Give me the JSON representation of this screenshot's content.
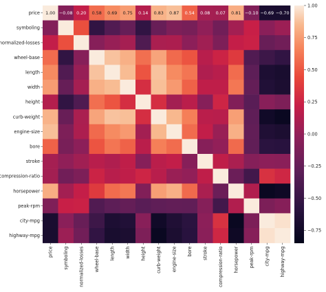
{
  "chart_data": {
    "type": "heatmap",
    "title": "",
    "xlabel": "",
    "ylabel": "",
    "categories": [
      "price",
      "symboling",
      "normalized-losses",
      "wheel-base",
      "length",
      "width",
      "height",
      "curb-weight",
      "engine-size",
      "bore",
      "stroke",
      "compression-ratio",
      "horsepower",
      "peak-rpm",
      "city-mpg",
      "highway-mpg"
    ],
    "annotated_rows": [
      0
    ],
    "values": [
      [
        1.0,
        -0.08,
        0.2,
        0.58,
        0.69,
        0.75,
        0.14,
        0.83,
        0.87,
        0.54,
        0.08,
        0.07,
        0.81,
        -0.1,
        -0.69,
        -0.7
      ],
      [
        -0.08,
        1.0,
        0.47,
        -0.54,
        -0.36,
        -0.24,
        -0.54,
        -0.23,
        -0.11,
        -0.14,
        -0.01,
        -0.18,
        0.07,
        0.23,
        -0.04,
        0.04
      ],
      [
        0.2,
        0.47,
        1.0,
        -0.06,
        0.02,
        0.08,
        -0.37,
        0.1,
        0.11,
        -0.03,
        0.06,
        -0.11,
        0.21,
        0.24,
        -0.23,
        -0.18
      ],
      [
        0.58,
        -0.54,
        -0.06,
        1.0,
        0.88,
        0.82,
        0.59,
        0.78,
        0.57,
        0.49,
        0.16,
        0.25,
        0.37,
        -0.36,
        -0.47,
        -0.54
      ],
      [
        0.69,
        -0.36,
        0.02,
        0.88,
        1.0,
        0.86,
        0.49,
        0.88,
        0.69,
        0.61,
        0.12,
        0.16,
        0.58,
        -0.29,
        -0.67,
        -0.7
      ],
      [
        0.75,
        -0.24,
        0.08,
        0.82,
        0.86,
        1.0,
        0.31,
        0.87,
        0.74,
        0.54,
        0.19,
        0.19,
        0.62,
        -0.25,
        -0.64,
        -0.68
      ],
      [
        0.14,
        -0.54,
        -0.37,
        0.59,
        0.49,
        0.31,
        1.0,
        0.31,
        0.07,
        0.17,
        -0.06,
        0.26,
        -0.09,
        -0.31,
        -0.05,
        -0.11
      ],
      [
        0.83,
        -0.23,
        0.1,
        0.78,
        0.88,
        0.87,
        0.31,
        1.0,
        0.85,
        0.65,
        0.17,
        0.16,
        0.76,
        -0.28,
        -0.75,
        -0.8
      ],
      [
        0.87,
        -0.11,
        0.11,
        0.57,
        0.69,
        0.74,
        0.07,
        0.85,
        1.0,
        0.58,
        0.2,
        0.03,
        0.82,
        -0.26,
        -0.65,
        -0.68
      ],
      [
        0.54,
        -0.14,
        -0.03,
        0.49,
        0.61,
        0.54,
        0.17,
        0.65,
        0.58,
        1.0,
        -0.06,
        0.0,
        0.57,
        -0.27,
        -0.58,
        -0.59
      ],
      [
        0.08,
        -0.01,
        0.06,
        0.16,
        0.12,
        0.19,
        -0.06,
        0.17,
        0.2,
        -0.06,
        1.0,
        0.19,
        0.1,
        -0.07,
        -0.03,
        -0.04
      ],
      [
        0.07,
        -0.18,
        -0.11,
        0.25,
        0.16,
        0.19,
        0.26,
        0.16,
        0.03,
        0.0,
        0.19,
        1.0,
        -0.21,
        -0.44,
        0.33,
        0.27
      ],
      [
        0.81,
        0.07,
        0.21,
        0.37,
        0.58,
        0.62,
        -0.09,
        0.76,
        0.82,
        0.57,
        0.1,
        -0.21,
        1.0,
        0.13,
        -0.8,
        -0.77
      ],
      [
        -0.1,
        0.23,
        0.24,
        -0.36,
        -0.29,
        -0.25,
        -0.31,
        -0.28,
        -0.26,
        -0.27,
        -0.07,
        -0.44,
        0.13,
        1.0,
        -0.12,
        -0.06
      ],
      [
        -0.69,
        -0.04,
        -0.23,
        -0.47,
        -0.67,
        -0.64,
        -0.05,
        -0.75,
        -0.65,
        -0.58,
        -0.03,
        0.33,
        -0.8,
        -0.12,
        1.0,
        0.97
      ],
      [
        -0.7,
        0.04,
        -0.18,
        -0.54,
        -0.7,
        -0.68,
        -0.11,
        -0.8,
        -0.68,
        -0.59,
        -0.04,
        0.27,
        -0.77,
        -0.06,
        0.97,
        1.0
      ]
    ],
    "colorbar": {
      "range": [
        -0.85,
        1.0
      ],
      "ticks": [
        1.0,
        0.75,
        0.5,
        0.25,
        0.0,
        -0.25,
        -0.5,
        -0.75
      ],
      "tick_labels": [
        "1.00",
        "0.75",
        "0.50",
        "0.25",
        "0.00",
        "−0.25",
        "−0.50",
        "−0.75"
      ]
    },
    "colormap": "rocket",
    "grid": false
  }
}
